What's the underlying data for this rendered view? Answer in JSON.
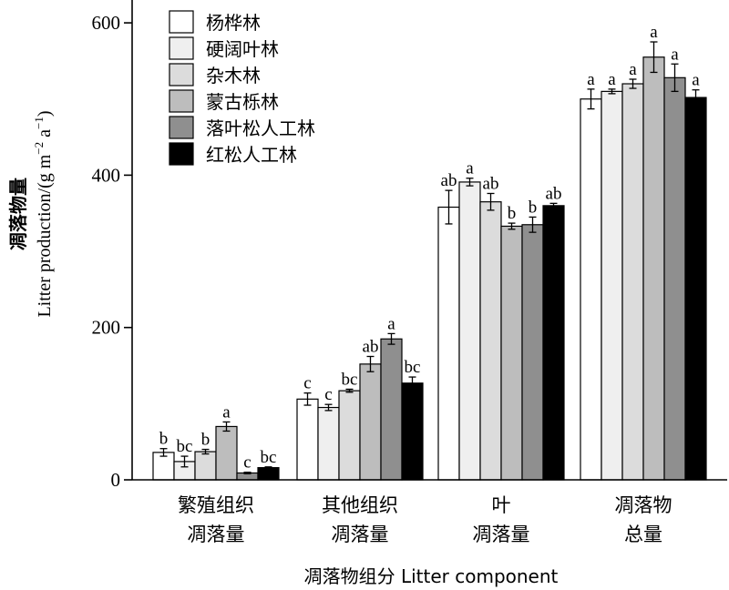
{
  "chart_data": {
    "type": "bar",
    "categories": [
      {
        "line1": "繁殖组织",
        "line2": "凋落量"
      },
      {
        "line1": "其他组织",
        "line2": "凋落量"
      },
      {
        "line1": "叶",
        "line2": "凋落量"
      },
      {
        "line1": "凋落物",
        "line2": "总量"
      }
    ],
    "series": [
      {
        "name": "杨桦林",
        "color": "#ffffff",
        "values": [
          36,
          106,
          358,
          500
        ],
        "errors": [
          5,
          8,
          22,
          13
        ],
        "letters": [
          "b",
          "c",
          "ab",
          "a"
        ]
      },
      {
        "name": "硬阔叶林",
        "color": "#efefef",
        "values": [
          24,
          95,
          391,
          510
        ],
        "errors": [
          7,
          4,
          5,
          3
        ],
        "letters": [
          "bc",
          "c",
          "a",
          "a"
        ]
      },
      {
        "name": "杂木林",
        "color": "#dcdcdc",
        "values": [
          37,
          117,
          365,
          520
        ],
        "errors": [
          3,
          2,
          11,
          6
        ],
        "letters": [
          "b",
          "bc",
          "ab",
          "a"
        ]
      },
      {
        "name": "蒙古栎林",
        "color": "#bdbdbd",
        "values": [
          70,
          152,
          333,
          555
        ],
        "errors": [
          6,
          10,
          4,
          20
        ],
        "letters": [
          "a",
          "ab",
          "b",
          "a"
        ]
      },
      {
        "name": "落叶松人工林",
        "color": "#8f8f8f",
        "values": [
          9,
          185,
          335,
          528
        ],
        "errors": [
          1,
          7,
          10,
          18
        ],
        "letters": [
          "c",
          "a",
          "b",
          "a"
        ]
      },
      {
        "name": "红松人工林",
        "color": "#000000",
        "values": [
          16,
          127,
          360,
          502
        ],
        "errors": [
          1,
          8,
          3,
          10
        ],
        "letters": [
          "bc",
          "bc",
          "ab",
          "a"
        ]
      }
    ],
    "ylim": [
      0,
      630
    ],
    "yticks": [
      0,
      200,
      400,
      600
    ],
    "ylabel_zh": "凋落物量",
    "ylabel_en": "Litter production/(g m",
    "ylabel_sup1": "−2",
    "ylabel_mid": " a",
    "ylabel_sup2": "−1",
    "ylabel_end": ")",
    "xlabel": "凋落物组分 Litter component",
    "legend_position": "top-left",
    "grid": false
  }
}
